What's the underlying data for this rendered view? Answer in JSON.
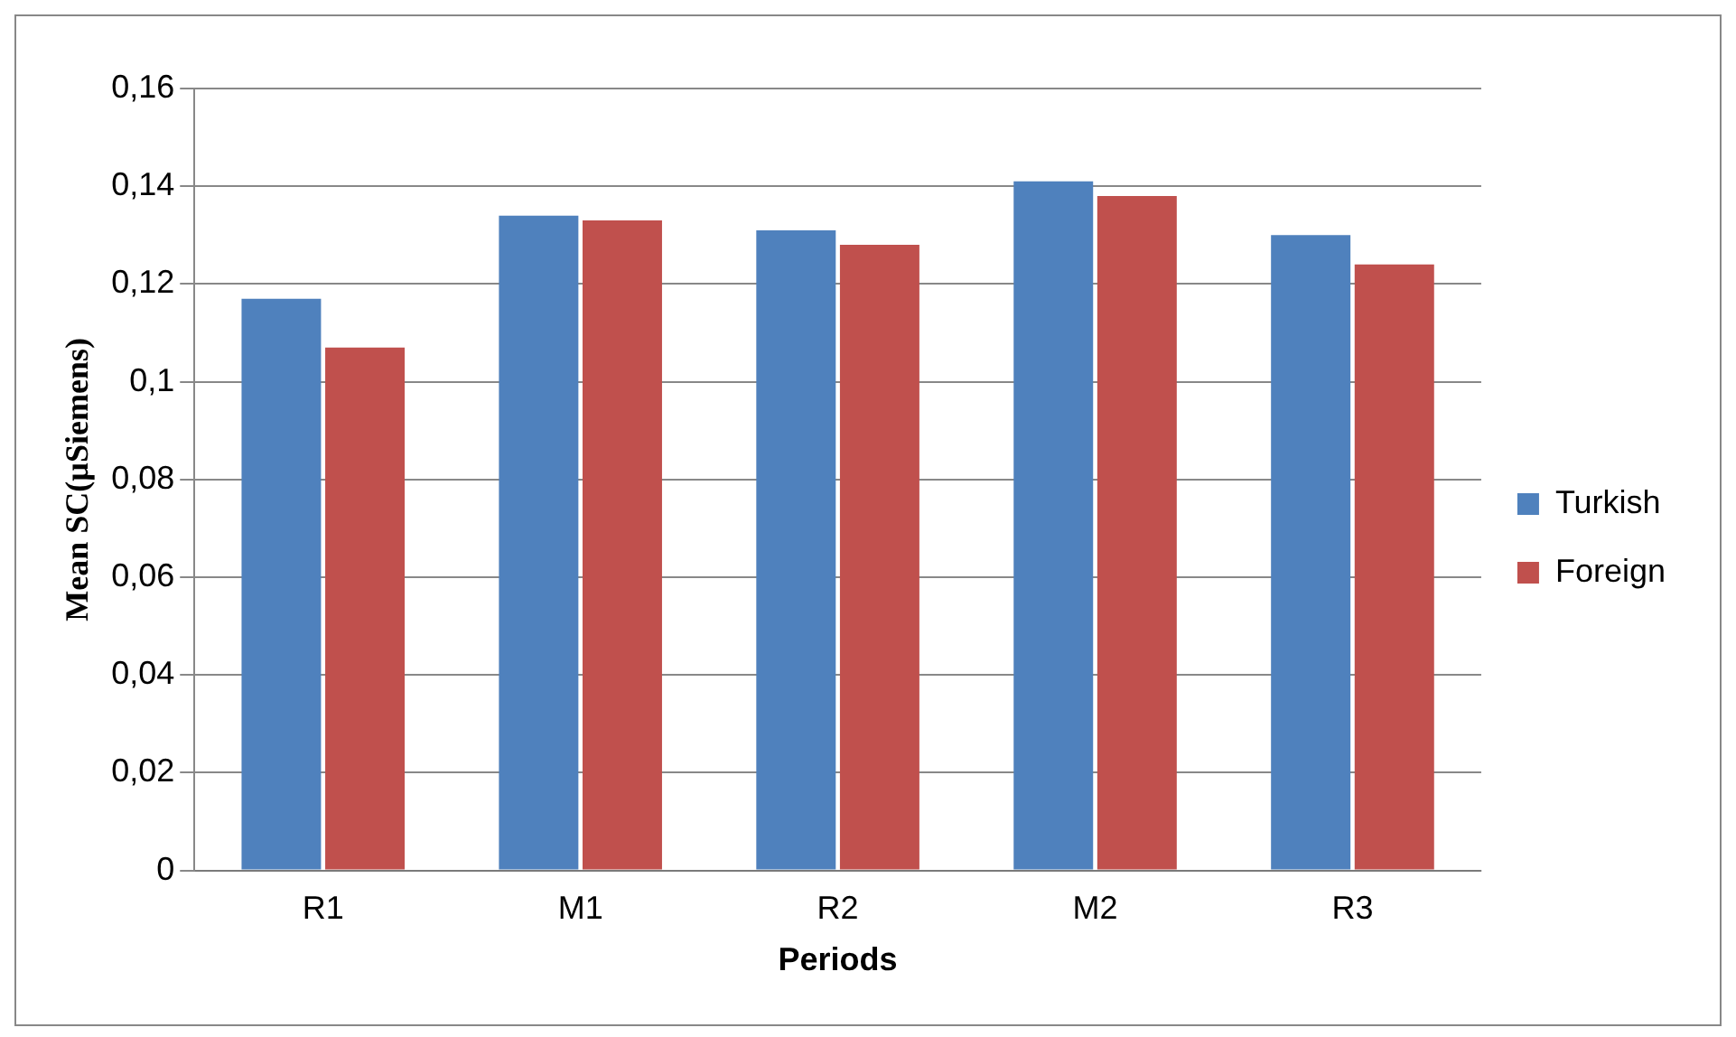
{
  "chart_data": {
    "type": "bar",
    "xlabel": "Periods",
    "ylabel": "Mean SC(µSiemens)",
    "categories": [
      "R1",
      "M1",
      "R2",
      "M2",
      "R3"
    ],
    "series": [
      {
        "name": "Turkish",
        "color": "#4f81bd",
        "values": [
          0.117,
          0.134,
          0.131,
          0.141,
          0.13
        ]
      },
      {
        "name": "Foreign",
        "color": "#c0504d",
        "values": [
          0.107,
          0.133,
          0.128,
          0.138,
          0.124
        ]
      }
    ],
    "ylim": [
      0,
      0.16
    ],
    "yticks": [
      {
        "value": 0,
        "label": "0"
      },
      {
        "value": 0.02,
        "label": "0,02"
      },
      {
        "value": 0.04,
        "label": "0,04"
      },
      {
        "value": 0.06,
        "label": "0,06"
      },
      {
        "value": 0.08,
        "label": "0,08"
      },
      {
        "value": 0.1,
        "label": "0,1"
      },
      {
        "value": 0.12,
        "label": "0,12"
      },
      {
        "value": 0.14,
        "label": "0,14"
      },
      {
        "value": 0.16,
        "label": "0,16"
      }
    ],
    "grid": "y",
    "legend": "right"
  }
}
